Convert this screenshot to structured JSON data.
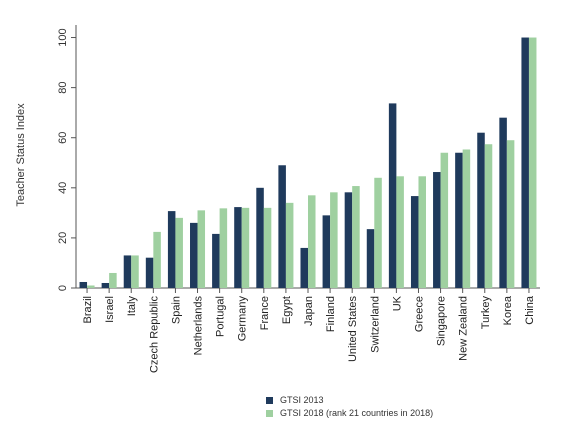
{
  "chart_data": {
    "type": "bar",
    "ylabel": "Teacher Status Index",
    "ylim": [
      0,
      105
    ],
    "yticks": [
      0,
      20,
      40,
      60,
      80,
      100
    ],
    "grid": false,
    "legend_position": "bottom",
    "categories": [
      "Brazil",
      "Israel",
      "Italy",
      "Czech Republic",
      "Spain",
      "Netherlands",
      "Portugal",
      "Germany",
      "France",
      "Egypt",
      "Japan",
      "Finland",
      "United States",
      "Switzerland",
      "UK",
      "Greece",
      "Singapore",
      "New Zealand",
      "Turkey",
      "Korea",
      "China"
    ],
    "series": [
      {
        "name": "GTSI 2013",
        "color": "#1f3a5c",
        "values": [
          2.4,
          2.0,
          13.0,
          12.1,
          30.7,
          26.0,
          21.6,
          32.3,
          40.0,
          49.0,
          16.0,
          29.0,
          38.2,
          23.5,
          73.7,
          36.7,
          46.3,
          54.0,
          62.0,
          68.0,
          100
        ]
      },
      {
        "name": "GTSI 2018 (rank 21 countries in 2018)",
        "color": "#9fd0a0",
        "values": [
          1.0,
          6.0,
          13.0,
          22.4,
          28.0,
          31.0,
          31.8,
          32.0,
          32.0,
          34.0,
          37.0,
          38.2,
          40.7,
          44.0,
          44.6,
          44.6,
          54.0,
          55.3,
          57.4,
          59.0,
          100
        ]
      }
    ]
  }
}
